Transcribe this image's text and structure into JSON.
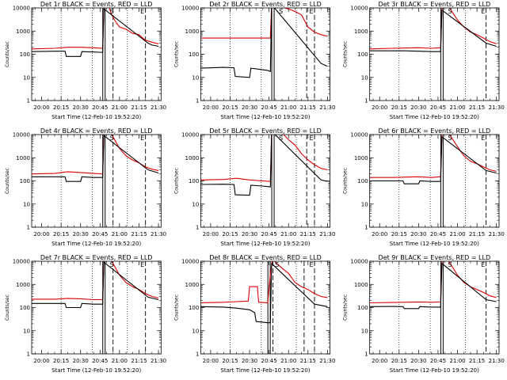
{
  "page": {
    "background": "#ffffff",
    "colors": {
      "events": "#000000",
      "lld": "#e00000",
      "axes": "#000000"
    }
  },
  "chart_data": [
    {
      "type": "line",
      "title": "Det 1r BLACK = Events, RED = LLD",
      "xlabel": "Start Time (12-Feb-10 19:52:20)",
      "ylabel": "Counts/sec",
      "xlim": [
        "19:52:20",
        "21:32:00"
      ],
      "ylim": [
        1,
        10000
      ],
      "yscale": "log",
      "xticks": [
        "20:00",
        "20:15",
        "20:30",
        "20:45",
        "21:00",
        "21:15",
        "21:30"
      ],
      "yticks": [
        "1",
        "10",
        "100",
        "1000",
        "10000"
      ],
      "markers": {
        "solid": [
          "20:48"
        ],
        "dotted": [
          "20:15",
          "20:39",
          "21:06"
        ],
        "dashed": [
          "20:55",
          "21:20"
        ],
        "labels": [
          "S",
          "E"
        ]
      },
      "series": [
        {
          "color": "#e00000",
          "x": [
            "19:52",
            "20:10",
            "20:20",
            "20:30",
            "20:40",
            "20:47",
            "20:48",
            "20:49",
            "20:51",
            "20:54",
            "20:57",
            "21:00",
            "21:05",
            "21:10",
            "21:15",
            "21:20",
            "21:25",
            "21:30"
          ],
          "y": [
            170,
            180,
            200,
            200,
            190,
            180,
            12000,
            20000,
            15000,
            5000,
            2500,
            1500,
            1200,
            800,
            700,
            400,
            330,
            280
          ]
        },
        {
          "color": "#000000",
          "x": [
            "19:52",
            "20:10",
            "20:18",
            "20:19",
            "20:30",
            "20:31",
            "20:40",
            "20:47",
            "20:48",
            "21:22",
            "21:25",
            "21:30"
          ],
          "y": [
            130,
            135,
            135,
            80,
            80,
            130,
            125,
            120,
            9000,
            300,
            250,
            220
          ]
        }
      ]
    },
    {
      "type": "line",
      "title": "Det 2r BLACK = Events, RED = LLD",
      "xlabel": "Start Time (12-Feb-10 19:52:20)",
      "ylabel": "Counts/sec",
      "xlim": [
        "19:52:20",
        "21:32:00"
      ],
      "ylim": [
        1,
        10000
      ],
      "yscale": "log",
      "xticks": [
        "20:00",
        "20:15",
        "20:30",
        "20:45",
        "21:00",
        "21:15",
        "21:30"
      ],
      "yticks": [
        "1",
        "10",
        "100",
        "1000",
        "10000"
      ],
      "markers": {
        "solid": [
          "20:48"
        ],
        "dotted": [
          "20:15",
          "20:39",
          "21:06"
        ],
        "dashed": [
          "21:14",
          "21:20"
        ],
        "labels": [
          "S",
          "E"
        ]
      },
      "series": [
        {
          "color": "#e00000",
          "x": [
            "19:52",
            "20:20",
            "20:40",
            "20:46",
            "20:47",
            "20:50",
            "20:55",
            "21:00",
            "21:05",
            "21:10",
            "21:15",
            "21:20",
            "21:25",
            "21:30"
          ],
          "y": [
            500,
            500,
            500,
            500,
            15000,
            12000,
            11000,
            9000,
            7000,
            5000,
            1500,
            900,
            700,
            600
          ]
        },
        {
          "color": "#000000",
          "x": [
            "19:52",
            "20:10",
            "20:18",
            "20:19",
            "20:30",
            "20:31",
            "20:44",
            "20:46",
            "20:47",
            "21:25",
            "21:30"
          ],
          "y": [
            25,
            27,
            26,
            11,
            10,
            25,
            20,
            18,
            14000,
            40,
            30
          ]
        }
      ]
    },
    {
      "type": "line",
      "title": "Det 3r BLACK = Events, RED = LLD",
      "xlabel": "Start Time (12-Feb-10 19:52:20)",
      "ylabel": "Counts/sec",
      "xlim": [
        "19:52:20",
        "21:32:00"
      ],
      "ylim": [
        1,
        10000
      ],
      "yscale": "log",
      "xticks": [
        "20:00",
        "20:15",
        "20:30",
        "20:45",
        "21:00",
        "21:15",
        "21:30"
      ],
      "yticks": [
        "1",
        "10",
        "100",
        "1000",
        "10000"
      ],
      "markers": {
        "solid": [
          "20:48"
        ],
        "dotted": [
          "20:15",
          "20:39",
          "21:06"
        ],
        "dashed": [
          "21:22"
        ],
        "labels": [
          "S",
          "E"
        ]
      },
      "series": [
        {
          "color": "#e00000",
          "x": [
            "19:52",
            "20:10",
            "20:30",
            "20:40",
            "20:47",
            "20:48",
            "20:50",
            "20:55",
            "21:00",
            "21:05",
            "21:10",
            "21:15",
            "21:20",
            "21:25",
            "21:30"
          ],
          "y": [
            170,
            180,
            190,
            180,
            190,
            10000,
            20000,
            8000,
            3000,
            1500,
            900,
            700,
            500,
            350,
            280
          ]
        },
        {
          "color": "#000000",
          "x": [
            "19:52",
            "20:20",
            "20:40",
            "20:47",
            "20:48",
            "21:22",
            "21:30"
          ],
          "y": [
            140,
            140,
            130,
            130,
            8000,
            300,
            220
          ]
        }
      ]
    },
    {
      "type": "line",
      "title": "Det 4r BLACK = Events, RED = LLD",
      "xlabel": "Start Time (12-Feb-10 19:52:20)",
      "ylabel": "Counts/sec",
      "xlim": [
        "19:52:20",
        "21:32:00"
      ],
      "ylim": [
        1,
        10000
      ],
      "yscale": "log",
      "xticks": [
        "20:00",
        "20:15",
        "20:30",
        "20:45",
        "21:00",
        "21:15",
        "21:30"
      ],
      "yticks": [
        "1",
        "10",
        "100",
        "1000",
        "10000"
      ],
      "markers": {
        "solid": [
          "20:48"
        ],
        "dotted": [
          "20:15",
          "20:39",
          "21:06"
        ],
        "dashed": [
          "20:55",
          "21:20"
        ],
        "labels": [
          "S",
          "E"
        ]
      },
      "series": [
        {
          "color": "#e00000",
          "x": [
            "19:52",
            "20:10",
            "20:20",
            "20:30",
            "20:40",
            "20:47",
            "20:48",
            "20:50",
            "20:55",
            "21:00",
            "21:05",
            "21:10",
            "21:15",
            "21:20",
            "21:25",
            "21:30"
          ],
          "y": [
            200,
            210,
            250,
            230,
            210,
            200,
            15000,
            20000,
            8000,
            2500,
            1200,
            800,
            600,
            400,
            320,
            280
          ]
        },
        {
          "color": "#000000",
          "x": [
            "19:52",
            "20:10",
            "20:18",
            "20:19",
            "20:30",
            "20:31",
            "20:40",
            "20:47",
            "20:48",
            "21:22",
            "21:30"
          ],
          "y": [
            150,
            150,
            150,
            95,
            95,
            150,
            140,
            140,
            9000,
            300,
            220
          ]
        }
      ]
    },
    {
      "type": "line",
      "title": "Det 5r BLACK = Events, RED = LLD",
      "xlabel": "Start Time (12-Feb-10 19:52:20)",
      "ylabel": "Counts/sec",
      "xlim": [
        "19:52:20",
        "21:32:00"
      ],
      "ylim": [
        1,
        10000
      ],
      "yscale": "log",
      "xticks": [
        "20:00",
        "20:15",
        "20:30",
        "20:45",
        "21:00",
        "21:15",
        "21:30"
      ],
      "yticks": [
        "1",
        "10",
        "100",
        "1000",
        "10000"
      ],
      "markers": {
        "solid": [
          "20:48"
        ],
        "dotted": [
          "20:15",
          "20:39",
          "21:06"
        ],
        "dashed": [
          "21:14",
          "21:20"
        ],
        "labels": [
          "S",
          "E"
        ]
      },
      "series": [
        {
          "color": "#e00000",
          "x": [
            "19:52",
            "20:10",
            "20:20",
            "20:30",
            "20:40",
            "20:46",
            "20:47",
            "20:50",
            "20:55",
            "21:00",
            "21:05",
            "21:10",
            "21:15",
            "21:20",
            "21:25",
            "21:30"
          ],
          "y": [
            110,
            115,
            130,
            110,
            100,
            95,
            14000,
            18000,
            12000,
            6000,
            3500,
            1500,
            800,
            500,
            350,
            300
          ]
        },
        {
          "color": "#000000",
          "x": [
            "19:52",
            "20:10",
            "20:18",
            "20:19",
            "20:30",
            "20:31",
            "20:40",
            "20:46",
            "20:47",
            "21:25",
            "21:30"
          ],
          "y": [
            70,
            72,
            70,
            25,
            24,
            65,
            60,
            55,
            14000,
            110,
            95
          ]
        }
      ]
    },
    {
      "type": "line",
      "title": "Det 6r BLACK = Events, RED = LLD",
      "xlabel": "Start Time (12-Feb-10 19:52:20)",
      "ylabel": "Counts/sec",
      "xlim": [
        "19:52:20",
        "21:32:00"
      ],
      "ylim": [
        1,
        10000
      ],
      "yscale": "log",
      "xticks": [
        "20:00",
        "20:15",
        "20:30",
        "20:45",
        "21:00",
        "21:15",
        "21:30"
      ],
      "yticks": [
        "1",
        "10",
        "100",
        "1000",
        "10000"
      ],
      "markers": {
        "solid": [
          "20:48"
        ],
        "dotted": [
          "20:15",
          "20:39",
          "21:06"
        ],
        "dashed": [
          "21:22"
        ],
        "labels": [
          "S",
          "E"
        ]
      },
      "series": [
        {
          "color": "#e00000",
          "x": [
            "19:52",
            "20:10",
            "20:30",
            "20:40",
            "20:47",
            "20:48",
            "20:50",
            "20:55",
            "21:00",
            "21:05",
            "21:10",
            "21:15",
            "21:20",
            "21:25",
            "21:30"
          ],
          "y": [
            140,
            140,
            150,
            140,
            150,
            12000,
            18000,
            8000,
            3000,
            1200,
            700,
            550,
            400,
            300,
            260
          ]
        },
        {
          "color": "#000000",
          "x": [
            "19:52",
            "20:10",
            "20:18",
            "20:19",
            "20:30",
            "20:31",
            "20:40",
            "20:47",
            "20:48",
            "21:22",
            "21:30"
          ],
          "y": [
            100,
            100,
            100,
            75,
            75,
            100,
            95,
            95,
            8000,
            280,
            220
          ]
        }
      ]
    },
    {
      "type": "line",
      "title": "Det 7r BLACK = Events, RED = LLD",
      "xlabel": "Start Time (12-Feb-10 19:52:20)",
      "ylabel": "Counts/sec",
      "xlim": [
        "19:52:20",
        "21:32:00"
      ],
      "ylim": [
        1,
        10000
      ],
      "yscale": "log",
      "xticks": [
        "20:00",
        "20:15",
        "20:30",
        "20:45",
        "21:00",
        "21:15",
        "21:30"
      ],
      "yticks": [
        "1",
        "10",
        "100",
        "1000",
        "10000"
      ],
      "markers": {
        "solid": [
          "20:48"
        ],
        "dotted": [
          "20:15",
          "20:39",
          "21:06"
        ],
        "dashed": [
          "20:55",
          "21:20"
        ],
        "labels": [
          "S",
          "E"
        ]
      },
      "series": [
        {
          "color": "#e00000",
          "x": [
            "19:52",
            "20:10",
            "20:20",
            "20:30",
            "20:40",
            "20:47",
            "20:48",
            "20:50",
            "20:55",
            "21:00",
            "21:05",
            "21:10",
            "21:15",
            "21:20",
            "21:25",
            "21:30"
          ],
          "y": [
            230,
            230,
            250,
            240,
            220,
            220,
            14000,
            18000,
            8000,
            2500,
            1200,
            800,
            600,
            400,
            300,
            260
          ]
        },
        {
          "color": "#000000",
          "x": [
            "19:52",
            "20:10",
            "20:18",
            "20:19",
            "20:30",
            "20:31",
            "20:40",
            "20:47",
            "20:48",
            "21:22",
            "21:30"
          ],
          "y": [
            150,
            150,
            150,
            100,
            100,
            150,
            140,
            140,
            9000,
            280,
            220
          ]
        }
      ]
    },
    {
      "type": "line",
      "title": "Det 8r BLACK = Events, RED = LLD",
      "xlabel": "Start Time (12-Feb-10 19:52:20)",
      "ylabel": "Counts/sec",
      "xlim": [
        "19:52:20",
        "21:32:00"
      ],
      "ylim": [
        1,
        10000
      ],
      "yscale": "log",
      "xticks": [
        "20:00",
        "20:15",
        "20:30",
        "20:45",
        "21:00",
        "21:15",
        "21:30"
      ],
      "yticks": [
        "1",
        "10",
        "100",
        "1000",
        "10000"
      ],
      "markers": {
        "solid": [
          "20:45"
        ],
        "dotted": [
          "20:15",
          "20:39",
          "21:06"
        ],
        "dashed": [
          "20:48",
          "21:12",
          "21:20"
        ],
        "labels": [
          "S",
          "E"
        ]
      },
      "series": [
        {
          "color": "#e00000",
          "x": [
            "19:52",
            "20:10",
            "20:20",
            "20:29",
            "20:30",
            "20:36",
            "20:37",
            "20:44",
            "20:46",
            "20:48",
            "20:50",
            "20:55",
            "21:00",
            "21:05",
            "21:10",
            "21:15",
            "21:20",
            "21:25",
            "21:30"
          ],
          "y": [
            160,
            170,
            180,
            190,
            800,
            800,
            170,
            160,
            3000,
            15000,
            9000,
            5000,
            3000,
            1200,
            800,
            600,
            400,
            300,
            270
          ]
        },
        {
          "color": "#000000",
          "x": [
            "19:52",
            "20:10",
            "20:20",
            "20:30",
            "20:34",
            "20:35",
            "20:44",
            "20:46",
            "20:47",
            "21:20",
            "21:30"
          ],
          "y": [
            110,
            105,
            95,
            80,
            60,
            25,
            22,
            22,
            8000,
            140,
            110
          ]
        }
      ]
    },
    {
      "type": "line",
      "title": "Det 9r BLACK = Events, RED = LLD",
      "xlabel": "Start Time (12-Feb-10 19:52:20)",
      "ylabel": "Counts/sec",
      "xlim": [
        "19:52:20",
        "21:32:00"
      ],
      "ylim": [
        1,
        10000
      ],
      "yscale": "log",
      "xticks": [
        "20:00",
        "20:15",
        "20:30",
        "20:45",
        "21:00",
        "21:15",
        "21:30"
      ],
      "yticks": [
        "1",
        "10",
        "100",
        "1000",
        "10000"
      ],
      "markers": {
        "solid": [
          "20:48"
        ],
        "dotted": [
          "20:15",
          "20:39",
          "21:06"
        ],
        "dashed": [
          "21:22"
        ],
        "labels": [
          "S",
          "E"
        ]
      },
      "series": [
        {
          "color": "#e00000",
          "x": [
            "19:52",
            "20:10",
            "20:30",
            "20:40",
            "20:47",
            "20:48",
            "20:50",
            "20:55",
            "21:00",
            "21:05",
            "21:10",
            "21:15",
            "21:20",
            "21:25",
            "21:30"
          ],
          "y": [
            160,
            165,
            175,
            170,
            175,
            12000,
            18000,
            7000,
            2500,
            1200,
            800,
            600,
            450,
            320,
            270
          ]
        },
        {
          "color": "#000000",
          "x": [
            "19:52",
            "20:10",
            "20:18",
            "20:19",
            "20:30",
            "20:31",
            "20:40",
            "20:47",
            "20:48",
            "21:22",
            "21:30"
          ],
          "y": [
            110,
            112,
            110,
            90,
            90,
            110,
            105,
            105,
            8000,
            220,
            180
          ]
        }
      ]
    }
  ]
}
